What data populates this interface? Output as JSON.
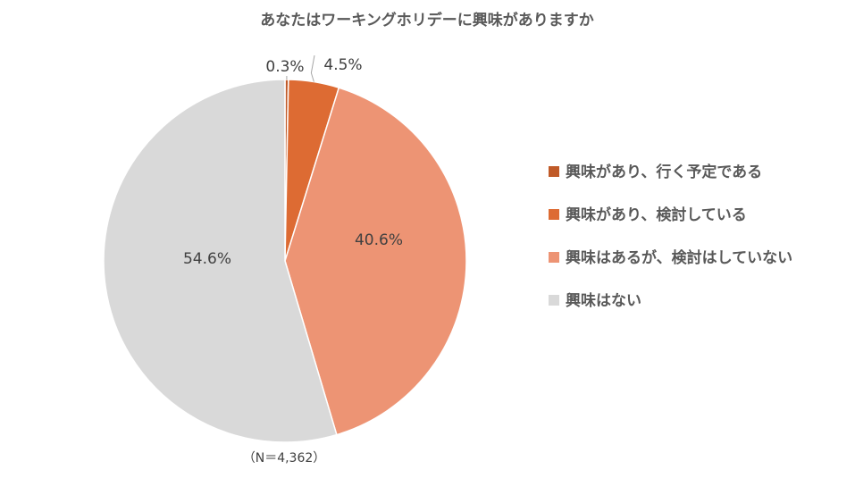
{
  "chart_data": {
    "type": "pie",
    "title": "あなたはワーキングホリデーに興味がありますか",
    "note": "（N＝4,362）",
    "legend_position": "right",
    "slices": [
      {
        "label": "興味があり、行く予定である",
        "value": 0.3,
        "display": "0.3%",
        "color": "#c05a28"
      },
      {
        "label": "興味があり、検討している",
        "value": 4.5,
        "display": "4.5%",
        "color": "#dd6b33"
      },
      {
        "label": "興味はあるが、検討はしていない",
        "value": 40.6,
        "display": "40.6%",
        "color": "#ed9474"
      },
      {
        "label": "興味はない",
        "value": 54.6,
        "display": "54.6%",
        "color": "#d9d9d9"
      }
    ]
  }
}
